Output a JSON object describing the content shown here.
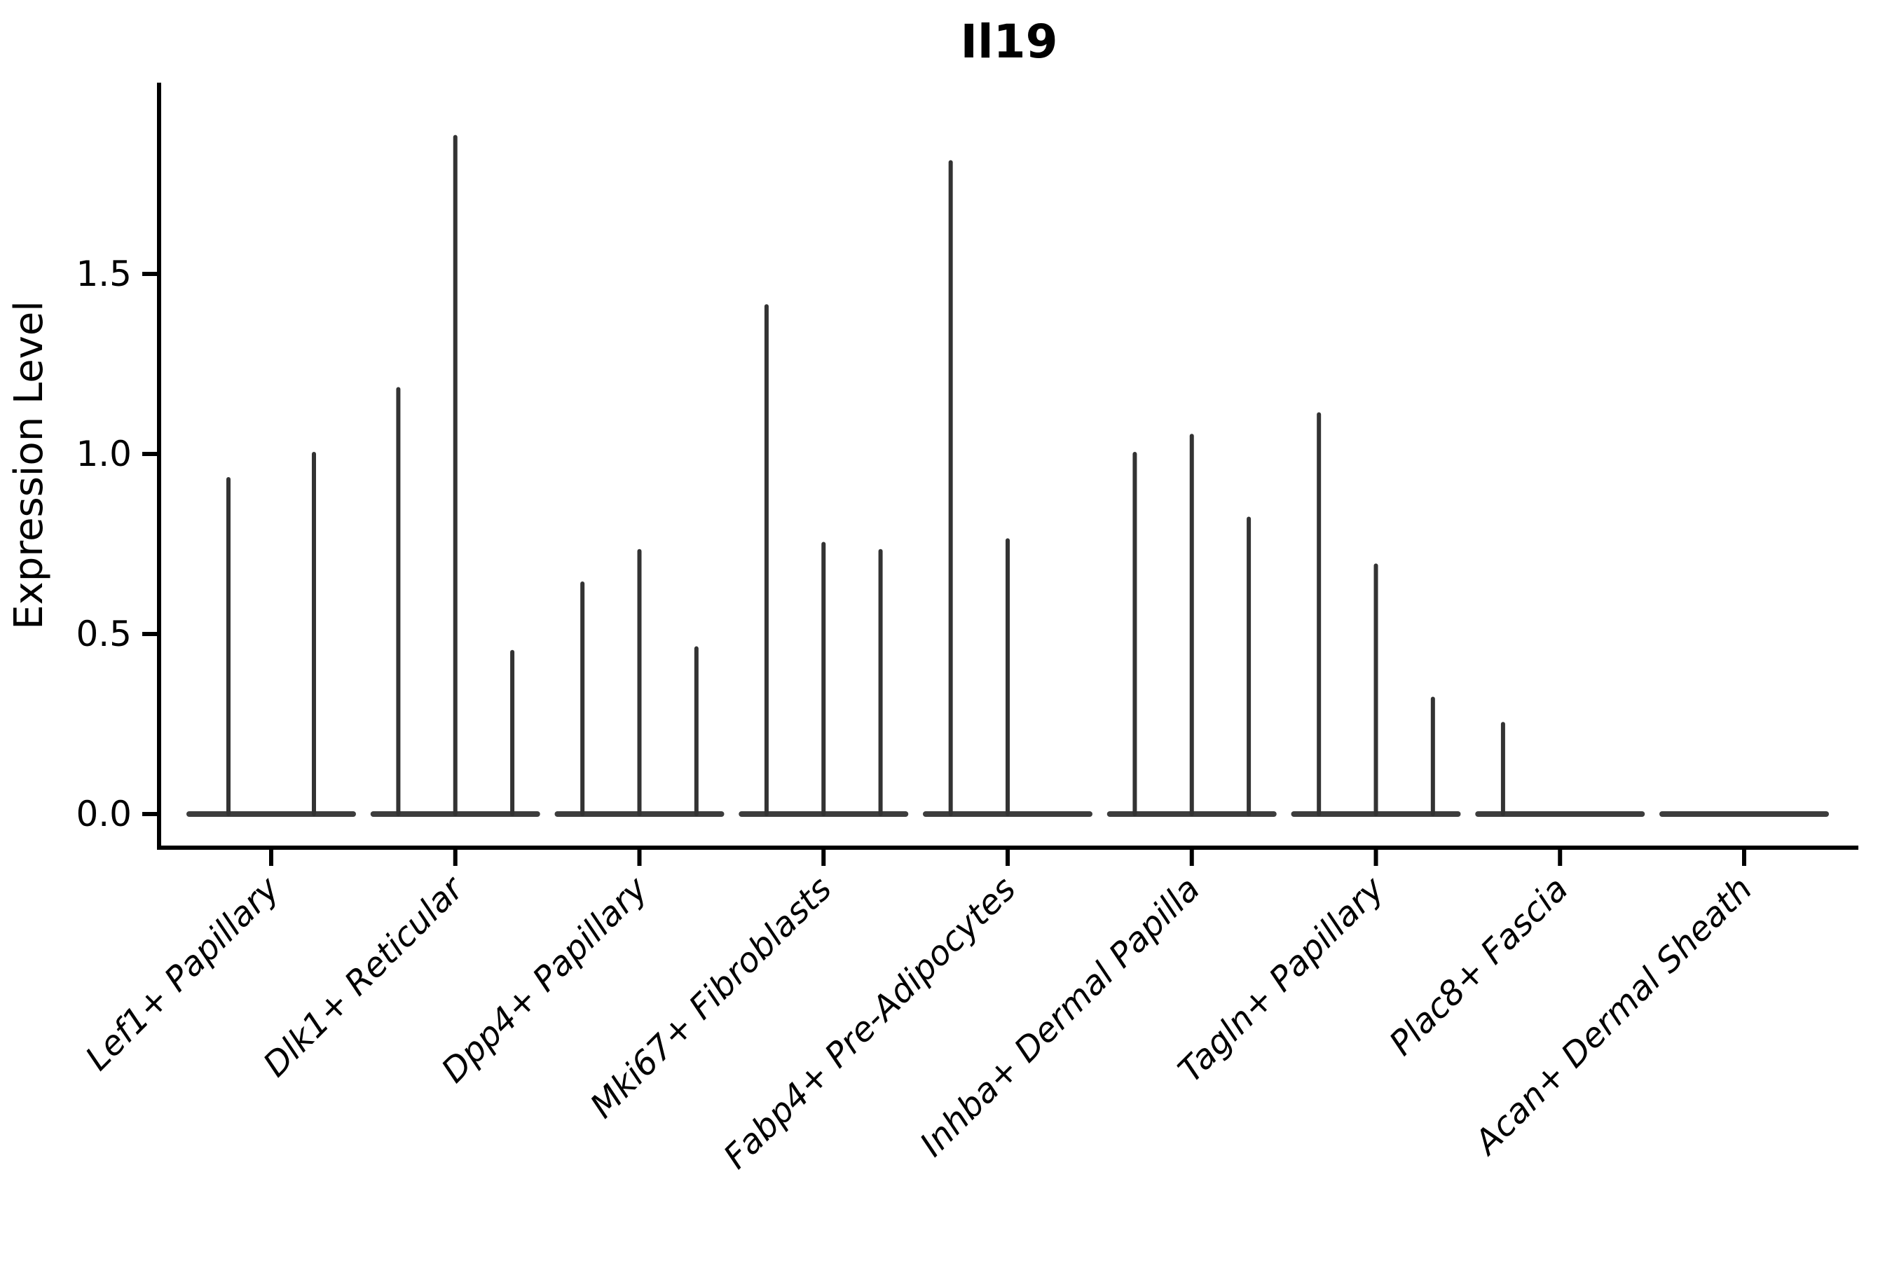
{
  "figure": {
    "title": "Il19",
    "ylabel": "Expression Level",
    "background_color": "#ffffff",
    "axis_color": "#000000",
    "violin_color": "#333333"
  },
  "chart_data": {
    "type": "violin",
    "title": "Il19",
    "xlabel": "",
    "ylabel": "Expression Level",
    "ylim": [
      0,
      2.03
    ],
    "yticks": [
      0.0,
      0.5,
      1.0,
      1.5
    ],
    "ytick_labels": [
      "0.0",
      "0.5",
      "1.0",
      "1.5"
    ],
    "grid": false,
    "legend": "none",
    "orientation": "vertical",
    "note": "Sparse expression: each violin collapses to a flat baseline at 0 with a thin vertical spike up to its max expression value; groups contain 2-3 sub-violins.",
    "categories": [
      "Lef1+ Papillary",
      "Dlk1+ Reticular",
      "Dpp4+ Papillary",
      "Mki67+ Fibroblasts",
      "Fabp4+ Pre-Adipocytes",
      "Inhba+ Dermal Papilla",
      "Tagln+ Papillary",
      "Plac8+ Fascia",
      "Acan+ Dermal Sheath"
    ],
    "groups": [
      {
        "label": "Lef1+ Papillary",
        "spike_max_values": [
          0.93,
          1.0
        ]
      },
      {
        "label": "Dlk1+ Reticular",
        "spike_max_values": [
          1.18,
          1.88,
          0.45
        ]
      },
      {
        "label": "Dpp4+ Papillary",
        "spike_max_values": [
          0.64,
          0.73,
          0.46
        ]
      },
      {
        "label": "Mki67+ Fibroblasts",
        "spike_max_values": [
          1.41,
          0.75,
          0.73
        ]
      },
      {
        "label": "Fabp4+ Pre-Adipocytes",
        "spike_max_values": [
          1.81,
          0.76,
          0.0
        ]
      },
      {
        "label": "Inhba+ Dermal Papilla",
        "spike_max_values": [
          1.0,
          1.05,
          0.82
        ]
      },
      {
        "label": "Tagln+ Papillary",
        "spike_max_values": [
          1.11,
          0.69,
          0.32
        ]
      },
      {
        "label": "Plac8+ Fascia",
        "spike_max_values": [
          0.25,
          0.0,
          0.0
        ]
      },
      {
        "label": "Acan+ Dermal Sheath",
        "spike_max_values": [
          0.0,
          0.0,
          0.0
        ]
      }
    ]
  }
}
